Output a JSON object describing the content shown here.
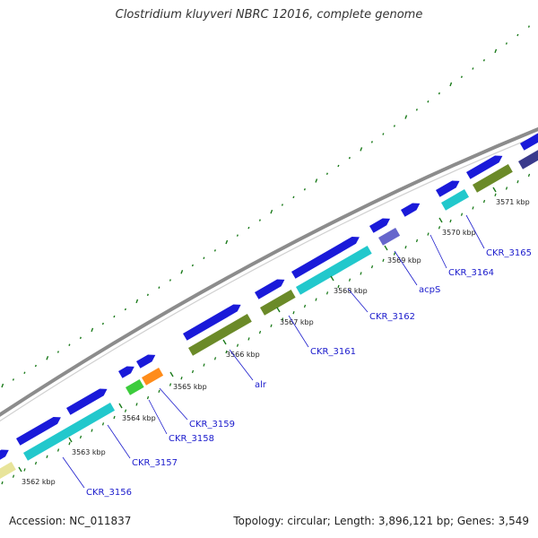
{
  "title": "Clostridium kluyveri NBRC 12016, complete genome",
  "accession": "Accession: NC_011837",
  "summary": "Topology: circular; Length: 3,896,121 bp; Genes: 3,549",
  "colors": {
    "background": "#ffffff",
    "backbone": "#8c8c8c",
    "forward_strand": "#1a1ad9",
    "dotted_grid": "#1a7a1a",
    "tick": "#1a7a1a",
    "label_link": "#1a1acc",
    "cds_cyan": "#22c8cc",
    "cds_olive": "#6b8a28",
    "cds_yellow": "#e8e49a",
    "cds_green": "#3ccc3c",
    "cds_orange": "#ff8c1a",
    "cds_purple": "#6666cc",
    "cds_darkpurple": "#3a3a8c"
  },
  "ticks": [
    {
      "label": "3562 kbp"
    },
    {
      "label": "3563 kbp"
    },
    {
      "label": "3564 kbp"
    },
    {
      "label": "3565 kbp"
    },
    {
      "label": "3566 kbp"
    },
    {
      "label": "3567 kbp"
    },
    {
      "label": "3568 kbp"
    },
    {
      "label": "3569 kbp"
    },
    {
      "label": "3570 kbp"
    },
    {
      "label": "3571 kbp"
    }
  ],
  "gene_labels": [
    {
      "name": "CKR_3156"
    },
    {
      "name": "CKR_3157"
    },
    {
      "name": "CKR_3158"
    },
    {
      "name": "CKR_3159"
    },
    {
      "name": "alr"
    },
    {
      "name": "CKR_3161"
    },
    {
      "name": "CKR_3162"
    },
    {
      "name": "acpS"
    },
    {
      "name": "CKR_3164"
    },
    {
      "name": "CKR_3165"
    }
  ]
}
